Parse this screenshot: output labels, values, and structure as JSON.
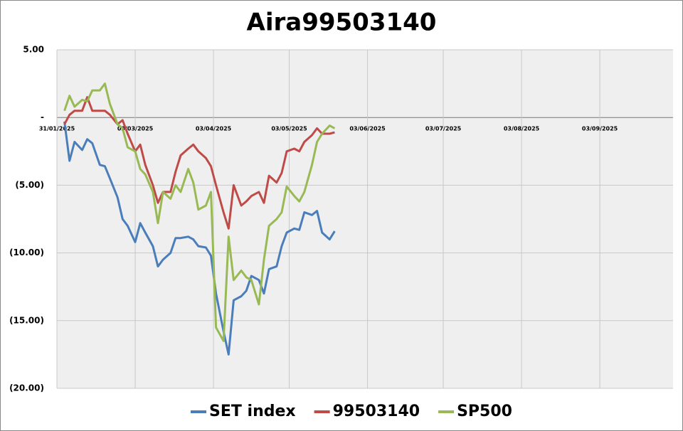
{
  "chart_data": {
    "type": "line",
    "title": "Aira99503140",
    "x": [
      "03/02/2025",
      "05/02/2025",
      "07/02/2025",
      "10/02/2025",
      "12/02/2025",
      "14/02/2025",
      "17/02/2025",
      "19/02/2025",
      "21/02/2025",
      "24/02/2025",
      "26/02/2025",
      "28/02/2025",
      "03/03/2025",
      "05/03/2025",
      "07/03/2025",
      "10/03/2025",
      "12/03/2025",
      "14/03/2025",
      "17/03/2025",
      "19/03/2025",
      "21/03/2025",
      "24/03/2025",
      "26/03/2025",
      "28/03/2025",
      "31/03/2025",
      "02/04/2025",
      "04/04/2025",
      "07/04/2025",
      "09/04/2025",
      "11/04/2025",
      "14/04/2025",
      "16/04/2025",
      "18/04/2025",
      "21/04/2025",
      "23/04/2025",
      "25/04/2025",
      "28/04/2025",
      "30/04/2025",
      "02/05/2025",
      "05/05/2025",
      "07/05/2025",
      "09/05/2025",
      "12/05/2025",
      "14/05/2025",
      "16/05/2025",
      "19/05/2025",
      "21/05/2025"
    ],
    "series": [
      {
        "name": "SET index",
        "color": "#4a7ebb",
        "values": [
          -0.3,
          -3.2,
          -1.8,
          -2.4,
          -1.6,
          -1.9,
          -3.5,
          -3.6,
          -4.5,
          -5.9,
          -7.5,
          -8.0,
          -9.2,
          -7.8,
          -8.5,
          -9.5,
          -11.0,
          -10.5,
          -10.0,
          -8.9,
          -8.9,
          -8.8,
          -9.0,
          -9.5,
          -9.6,
          -10.2,
          -13.0,
          -15.8,
          -17.5,
          -13.5,
          -13.2,
          -12.8,
          -11.7,
          -12.0,
          -13.0,
          -11.2,
          -11.0,
          -9.5,
          -8.5,
          -8.2,
          -8.3,
          -7.0,
          -7.2,
          -6.9,
          -8.5,
          -9.0,
          -8.4
        ]
      },
      {
        "name": "99503140",
        "color": "#be4b48",
        "values": [
          -0.5,
          0.2,
          0.5,
          0.5,
          1.5,
          0.5,
          0.5,
          0.5,
          0.2,
          -0.5,
          -0.2,
          -1.2,
          -2.5,
          -2.0,
          -3.5,
          -5.0,
          -6.3,
          -5.5,
          -5.5,
          -4.0,
          -2.8,
          -2.3,
          -2.0,
          -2.5,
          -3.0,
          -3.6,
          -5.0,
          -7.0,
          -8.2,
          -5.0,
          -6.5,
          -6.2,
          -5.8,
          -5.5,
          -6.3,
          -4.3,
          -4.8,
          -4.1,
          -2.5,
          -2.3,
          -2.5,
          -1.8,
          -1.3,
          -0.8,
          -1.2,
          -1.2,
          -1.1
        ]
      },
      {
        "name": "SP500",
        "color": "#98b954",
        "values": [
          0.5,
          1.6,
          0.8,
          1.3,
          1.2,
          2.0,
          2.0,
          2.5,
          1.0,
          -0.5,
          -0.8,
          -2.2,
          -2.5,
          -3.8,
          -4.2,
          -5.5,
          -7.8,
          -5.5,
          -6.0,
          -5.0,
          -5.5,
          -3.8,
          -4.8,
          -6.8,
          -6.5,
          -5.5,
          -15.5,
          -16.5,
          -8.8,
          -12.0,
          -11.3,
          -11.8,
          -12.0,
          -13.8,
          -10.5,
          -8.0,
          -7.5,
          -7.0,
          -5.1,
          -5.8,
          -6.2,
          -5.5,
          -3.5,
          -1.8,
          -1.2,
          -0.6,
          -0.8
        ]
      }
    ],
    "xlim": [
      "31/01/2025",
      "02/10/2025"
    ],
    "xticks": [
      "31/01/2025",
      "03/03/2025",
      "03/04/2025",
      "03/05/2025",
      "03/06/2025",
      "03/07/2025",
      "03/08/2025",
      "03/09/2025"
    ],
    "ylim": [
      -20,
      5
    ],
    "yticks": [
      {
        "value": 5,
        "label": "5.00"
      },
      {
        "value": 0,
        "label": "-"
      },
      {
        "value": -5,
        "label": "(5.00)"
      },
      {
        "value": -10,
        "label": "(10.00)"
      },
      {
        "value": -15,
        "label": "(15.00)"
      },
      {
        "value": -20,
        "label": "(20.00)"
      }
    ],
    "grid": true
  }
}
